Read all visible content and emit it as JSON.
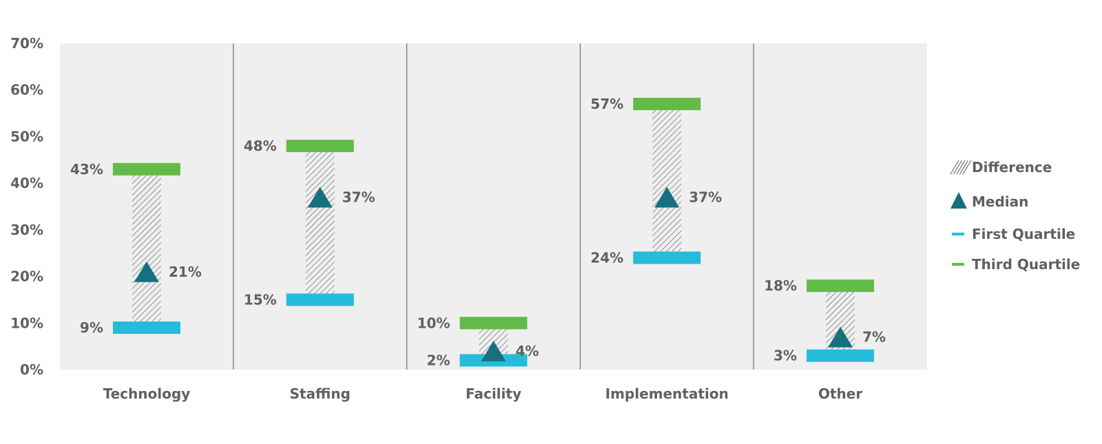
{
  "chart_data": {
    "type": "range",
    "title": "",
    "xlabel": "",
    "ylabel": "",
    "ylim": [
      0,
      70
    ],
    "yticks": [
      "0%",
      "10%",
      "20%",
      "30%",
      "40%",
      "50%",
      "60%",
      "70%"
    ],
    "ytick_values": [
      0,
      10,
      20,
      30,
      40,
      50,
      60,
      70
    ],
    "categories": [
      "Technology",
      "Staffing",
      "Facility",
      "Implementation",
      "Other"
    ],
    "series": [
      {
        "name": "Third Quartile",
        "values": [
          43,
          48,
          10,
          57,
          18
        ],
        "labels": [
          "43%",
          "48%",
          "10%",
          "57%",
          "18%"
        ],
        "color": "#63bb47"
      },
      {
        "name": "Median",
        "values": [
          21,
          37,
          4,
          37,
          7
        ],
        "labels": [
          "21%",
          "37%",
          "4%",
          "37%",
          "7%"
        ],
        "color": "#17707f"
      },
      {
        "name": "First Quartile",
        "values": [
          9,
          15,
          2,
          24,
          3
        ],
        "labels": [
          "9%",
          "15%",
          "2%",
          "24%",
          "3%"
        ],
        "color": "#25bcd9"
      }
    ],
    "legend": {
      "position": "right",
      "items": [
        {
          "name": "Difference",
          "symbol": "hatch",
          "color": "#6b6b6b"
        },
        {
          "name": "Median",
          "symbol": "triangle",
          "color": "#17707f"
        },
        {
          "name": "First Quartile",
          "symbol": "dash",
          "color": "#25bcd9"
        },
        {
          "name": "Third Quartile",
          "symbol": "dash",
          "color": "#63bb47"
        }
      ]
    },
    "grid": false,
    "colors": {
      "plot_background": "#efefef",
      "divider": "#777777",
      "text": "#5f6061"
    }
  }
}
